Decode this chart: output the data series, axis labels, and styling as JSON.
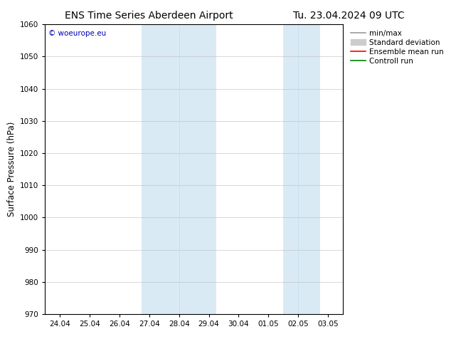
{
  "title": "ENS Time Series Aberdeen Airport",
  "title_date": "Tu. 23.04.2024 09 UTC",
  "ylabel": "Surface Pressure (hPa)",
  "ylim": [
    970,
    1060
  ],
  "yticks": [
    970,
    980,
    990,
    1000,
    1010,
    1020,
    1030,
    1040,
    1050,
    1060
  ],
  "xtick_labels": [
    "24.04",
    "25.04",
    "26.04",
    "27.04",
    "28.04",
    "29.04",
    "30.04",
    "01.05",
    "02.05",
    "03.05"
  ],
  "xtick_positions": [
    0,
    1,
    2,
    3,
    4,
    5,
    6,
    7,
    8,
    9
  ],
  "xlim": [
    -0.5,
    9.5
  ],
  "shaded_bands": [
    {
      "x_start": 2.75,
      "x_end": 5.25,
      "color": "#daeaf5"
    },
    {
      "x_start": 7.5,
      "x_end": 8.75,
      "color": "#daeaf5"
    }
  ],
  "shaded_band_lines": [
    {
      "x": 4.0
    },
    {
      "x": 8.0
    }
  ],
  "watermark_text": "© woeurope.eu",
  "watermark_color": "#0000bb",
  "background_color": "#ffffff",
  "legend_entries": [
    {
      "label": "min/max",
      "color": "#999999",
      "lw": 1.2,
      "type": "line"
    },
    {
      "label": "Standard deviation",
      "color": "#cccccc",
      "lw": 8,
      "type": "patch"
    },
    {
      "label": "Ensemble mean run",
      "color": "#ff0000",
      "lw": 1.2,
      "type": "line"
    },
    {
      "label": "Controll run",
      "color": "#008000",
      "lw": 1.2,
      "type": "line"
    }
  ],
  "grid_color": "#bbbbbb",
  "tick_label_fontsize": 7.5,
  "axis_label_fontsize": 8.5,
  "title_fontsize": 10,
  "legend_fontsize": 7.5
}
